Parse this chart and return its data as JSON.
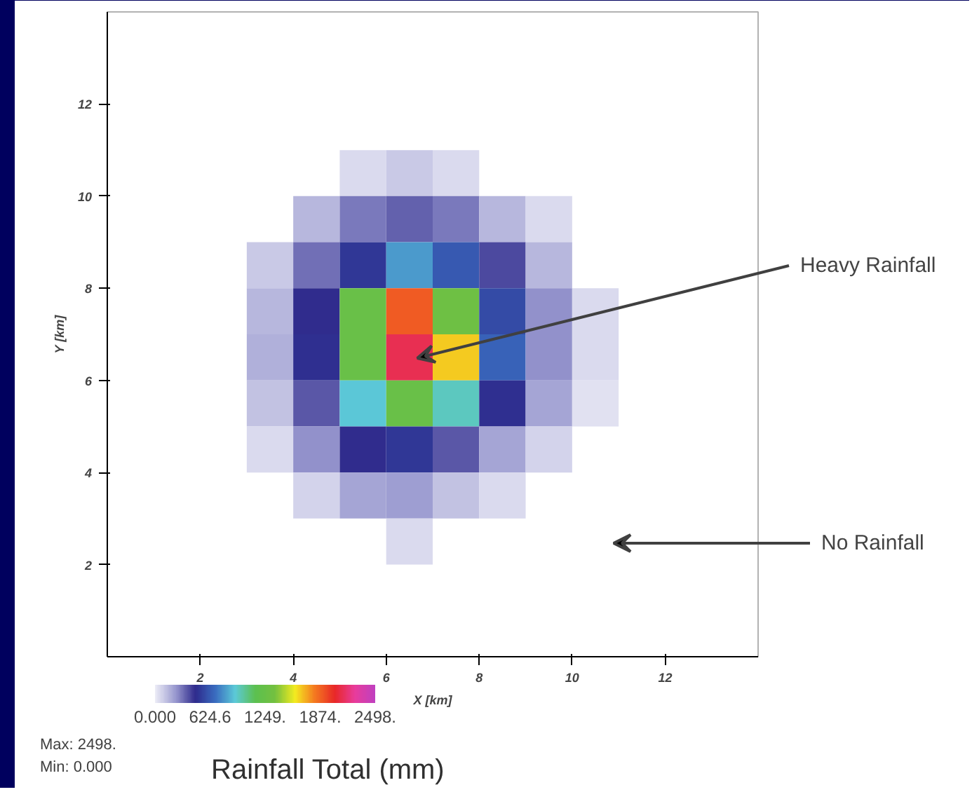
{
  "chart_data": {
    "type": "heatmap",
    "xlabel": "X [km]",
    "ylabel": "Y [km]",
    "clabel": "Rainfall Total (mm)",
    "x": [
      3.5,
      4.5,
      5.5,
      6.5,
      7.5,
      8.5,
      9.5,
      10.5
    ],
    "y": [
      10.5,
      9.5,
      8.5,
      7.5,
      6.5,
      5.5,
      4.5,
      3.5,
      2.5
    ],
    "xlim": [
      0,
      14
    ],
    "ylim": [
      0,
      14
    ],
    "xticks": [
      2,
      4,
      6,
      8,
      10,
      12
    ],
    "yticks": [
      2,
      4,
      6,
      8,
      10,
      12
    ],
    "cells": [
      [
        null,
        null,
        50,
        100,
        50,
        null,
        null,
        null
      ],
      [
        null,
        150,
        300,
        350,
        300,
        150,
        50,
        null
      ],
      [
        100,
        320,
        500,
        800,
        620,
        400,
        150,
        null
      ],
      [
        150,
        450,
        1250,
        1900,
        1300,
        570,
        250,
        50
      ],
      [
        170,
        470,
        1250,
        2120,
        1650,
        650,
        250,
        50
      ],
      [
        120,
        370,
        900,
        1250,
        950,
        470,
        200,
        30
      ],
      [
        50,
        250,
        450,
        500,
        370,
        200,
        70,
        null
      ],
      [
        null,
        70,
        200,
        220,
        120,
        50,
        null,
        null
      ],
      [
        null,
        null,
        null,
        50,
        null,
        null,
        null,
        null
      ]
    ],
    "clim": [
      0,
      2498
    ],
    "cticks": [
      {
        "value": 0,
        "label": "0.000"
      },
      {
        "value": 624.6,
        "label": "624.6"
      },
      {
        "value": 1249,
        "label": "1249."
      },
      {
        "value": 1874,
        "label": "1874."
      },
      {
        "value": 2498,
        "label": "2498."
      }
    ],
    "colors": [
      "#ececf6",
      "#9a9ad0",
      "#2e2a8c",
      "#3a6cc0",
      "#5ccad8",
      "#5cc050",
      "#74c040",
      "#f4ec20",
      "#f47820",
      "#e82828",
      "#e83c9c",
      "#c040c0"
    ],
    "annotations": [
      "Heavy Rainfall",
      "No Rainfall",
      "Max: 2498.",
      "Min: 0.000"
    ]
  }
}
